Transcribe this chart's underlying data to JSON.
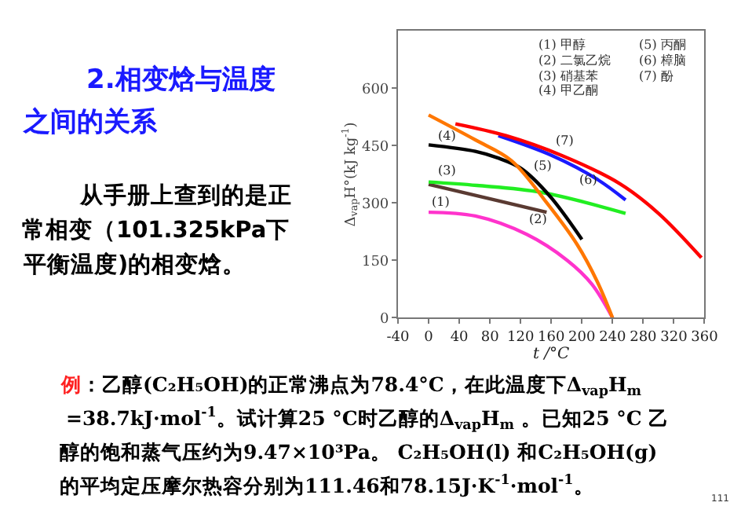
{
  "chart_data": {
    "type": "line",
    "title": "2.相变焓与温度之间的关系",
    "subtitle": "从手册上查到的是正常相变（101.325kPa下平衡温度)的相变焓。",
    "xlabel": "t /°C",
    "ylabel": "Δ$_{vap}$H°(kJ kg$^{-1}$)",
    "xlim": [
      -40,
      360
    ],
    "xticks": [
      -40,
      0,
      40,
      80,
      120,
      160,
      200,
      240,
      280,
      320,
      360
    ],
    "ylim": [
      0,
      750
    ],
    "yticks": [
      0,
      150,
      300,
      450,
      600
    ],
    "marker": "none",
    "line_style": "solid",
    "series": [
      {
        "color": "#ff33cc",
        "x": [
          0,
          61,
          128,
          181,
          213,
          240
        ],
        "values": [
          276,
          266,
          218,
          150,
          88,
          0
        ]
      },
      {
        "color": "#5a3a32",
        "x": [
          0,
          154
        ],
        "values": [
          349,
          276
        ]
      },
      {
        "color": "#22ee22",
        "x": [
          0,
          63,
          147,
          257
        ],
        "values": [
          355,
          346,
          328,
          273
        ]
      },
      {
        "color": "#000000",
        "x": [
          0,
          61,
          90,
          121,
          157,
          200
        ],
        "values": [
          452,
          435,
          418,
          390,
          321,
          205
        ]
      },
      {
        "color": "#ff7700",
        "x": [
          0,
          61,
          108,
          154,
          194,
          220,
          240
        ],
        "values": [
          530,
          465,
          411,
          301,
          191,
          95,
          0
        ]
      },
      {
        "color": "#1a1aff",
        "x": [
          91,
          161,
          220,
          257
        ],
        "values": [
          476,
          424,
          362,
          308
        ]
      },
      {
        "color": "#ff0000",
        "x": [
          35,
          101,
          174,
          250,
          300,
          356
        ],
        "values": [
          507,
          476,
          424,
          350,
          273,
          157
        ]
      }
    ],
    "annotations": [
      "(1) 甲醇",
      "(2) 二氯乙烷",
      "(3) 硝基苯",
      "(4) 甲乙酮",
      "(5) 丙酮",
      "(6) 樟脑",
      "(7) 酚",
      "(1)",
      "(2)",
      "(3)",
      "(4)",
      "(5)",
      "(6)",
      "(7)",
      "例：乙醇(C₂H₅OH)的正常沸点为78.4°C，在此温度下Δ$_{vap}$H$_{m}$",
      "=38.7kJ·mol$^{-1}$。试计算25 °C时乙醇的Δ$_{vap}$H$_{m}$ 。已知25 °C 乙",
      "醇的饱和蒸气压约为9.47×10³Pa。 C₂H₅OH(l) 和C₂H₅OH(g)",
      "的平均定压摩尔热容分别为111.46和78.15J·K$^{-1}$·mol$^{-1}$。",
      "111"
    ]
  }
}
